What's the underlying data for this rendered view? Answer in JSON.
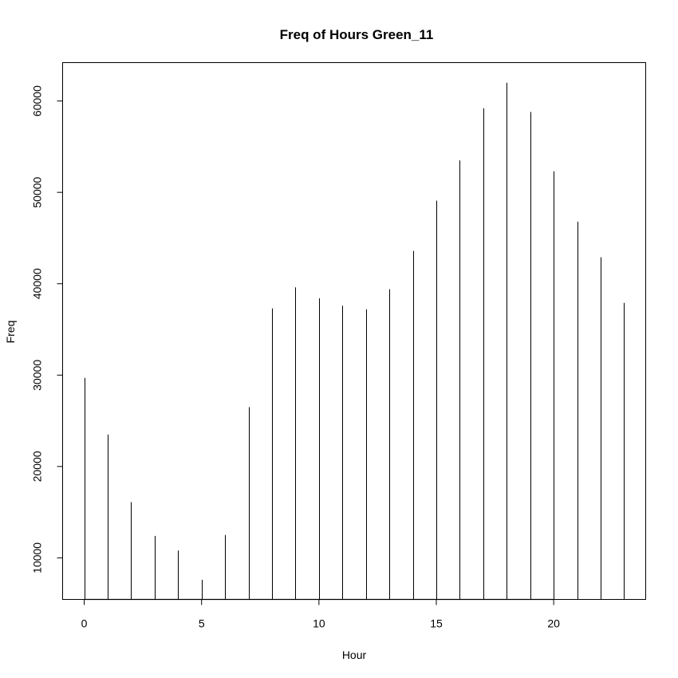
{
  "chart_data": {
    "type": "bar",
    "title": "Freq of Hours Green_11",
    "xlabel": "Hour",
    "ylabel": "Freq",
    "x": [
      0,
      1,
      2,
      3,
      4,
      5,
      6,
      7,
      8,
      9,
      10,
      11,
      12,
      13,
      14,
      15,
      16,
      17,
      18,
      19,
      20,
      21,
      22,
      23
    ],
    "values": [
      29700,
      23500,
      16100,
      12400,
      10800,
      7600,
      12500,
      26500,
      37300,
      39600,
      38400,
      37600,
      37200,
      39400,
      43600,
      49100,
      53500,
      59200,
      62000,
      58800,
      52300,
      46800,
      42900,
      37900
    ],
    "xlim": [
      -0.92,
      23.92
    ],
    "ylim": [
      5450,
      64200
    ],
    "x_ticks": [
      0,
      5,
      10,
      15,
      20
    ],
    "x_tick_labels": [
      "0",
      "5",
      "10",
      "15",
      "20"
    ],
    "y_ticks": [
      10000,
      20000,
      30000,
      40000,
      50000,
      60000
    ],
    "y_tick_labels": [
      "10000",
      "20000",
      "30000",
      "40000",
      "50000",
      "60000"
    ],
    "baseline": 5450,
    "baseline_x_range": [
      0,
      20
    ],
    "grid": false,
    "legend": "none",
    "colors": {
      "line": "#000000",
      "background": "#ffffff"
    }
  }
}
